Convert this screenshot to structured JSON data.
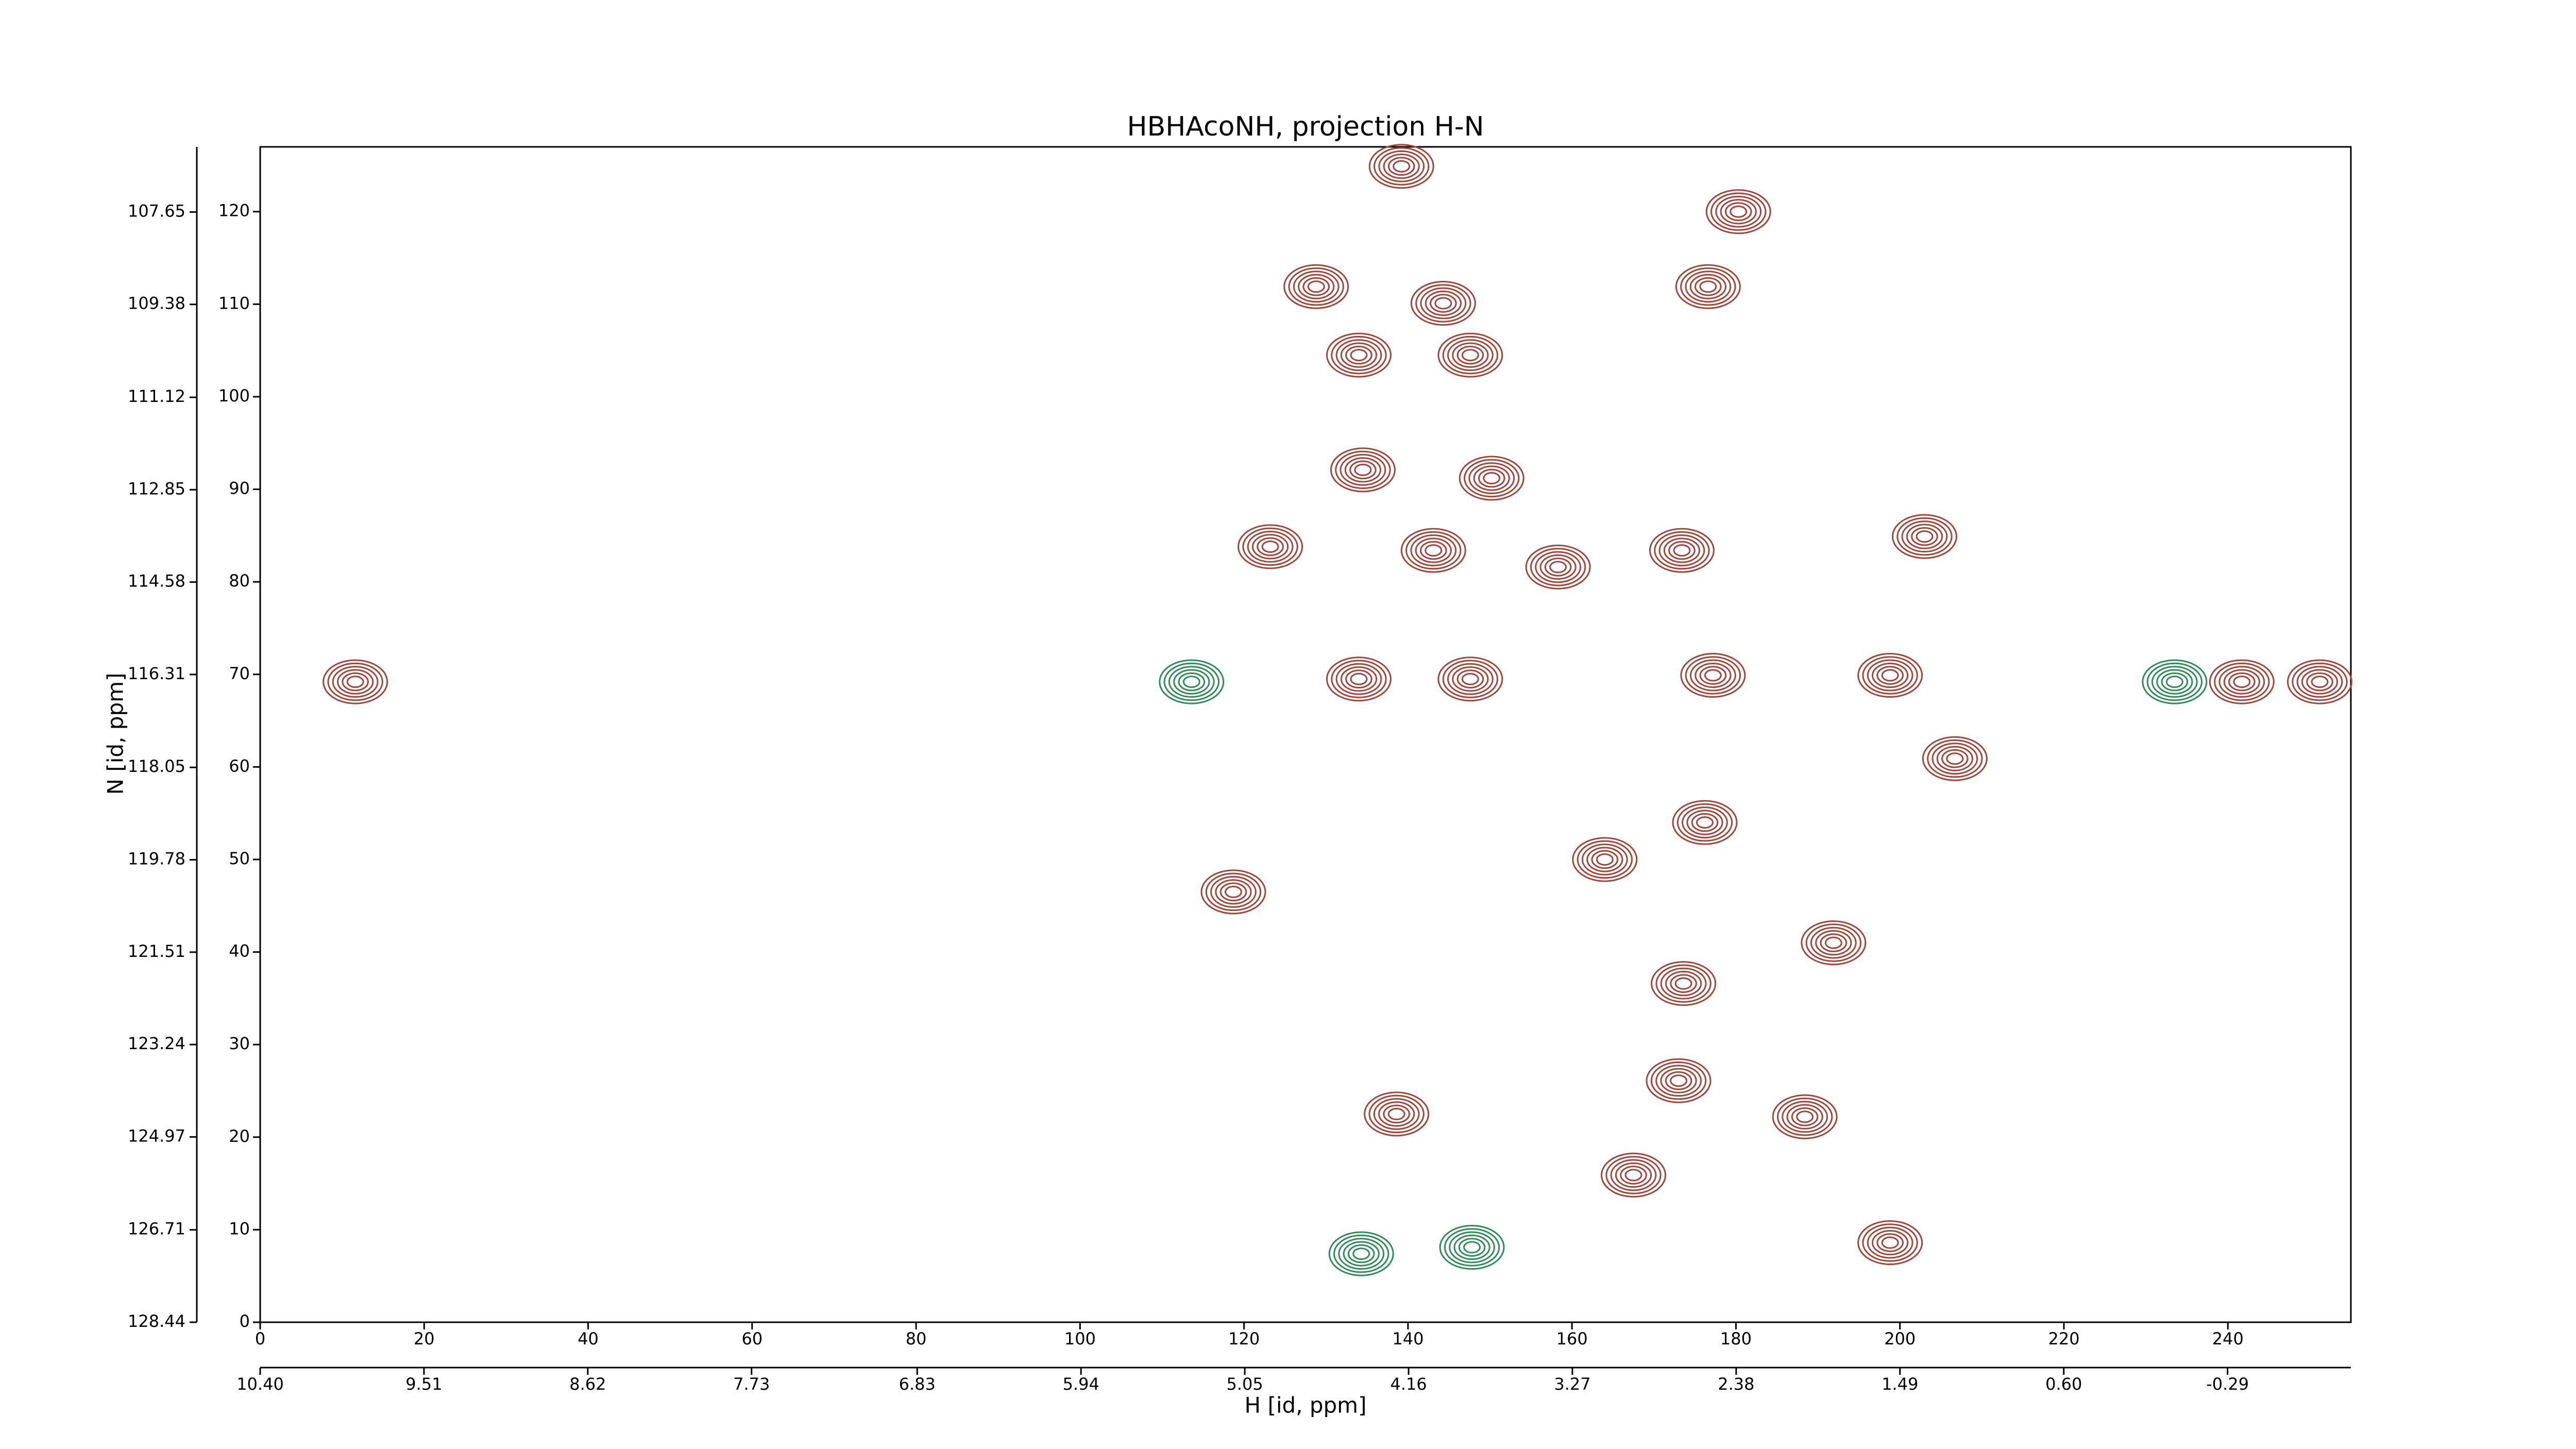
{
  "chart_data": {
    "type": "contour",
    "title": "HBHAcoNH, projection H-N",
    "xlabel": "H [id, ppm]",
    "ylabel": "N [id, ppm]",
    "xlim": [
      0,
      255
    ],
    "xticks": [
      0,
      20,
      40,
      60,
      80,
      100,
      120,
      140,
      160,
      180,
      200,
      220,
      240
    ],
    "ylim": [
      0,
      127
    ],
    "yticks": [
      0,
      10,
      20,
      30,
      40,
      50,
      60,
      70,
      80,
      90,
      100,
      110,
      120
    ],
    "x2lim": [
      10.4,
      -0.96
    ],
    "x2ticks": [
      {
        "value": 10.4,
        "label": "10.40"
      },
      {
        "value": 9.51,
        "label": "9.51"
      },
      {
        "value": 8.62,
        "label": "8.62"
      },
      {
        "value": 7.73,
        "label": "7.73"
      },
      {
        "value": 6.83,
        "label": "6.83"
      },
      {
        "value": 5.94,
        "label": "5.94"
      },
      {
        "value": 5.05,
        "label": "5.05"
      },
      {
        "value": 4.16,
        "label": "4.16"
      },
      {
        "value": 3.27,
        "label": "3.27"
      },
      {
        "value": 2.38,
        "label": "2.38"
      },
      {
        "value": 1.49,
        "label": "1.49"
      },
      {
        "value": 0.6,
        "label": "0.60"
      },
      {
        "value": -0.29,
        "label": "-0.29"
      }
    ],
    "y2lim": [
      128.44,
      106.43
    ],
    "y2ticks": [
      {
        "value": 128.44,
        "label": "128.44"
      },
      {
        "value": 126.71,
        "label": "126.71"
      },
      {
        "value": 124.97,
        "label": "124.97"
      },
      {
        "value": 123.24,
        "label": "123.24"
      },
      {
        "value": 121.51,
        "label": "121.51"
      },
      {
        "value": 119.78,
        "label": "119.78"
      },
      {
        "value": 118.05,
        "label": "118.05"
      },
      {
        "value": 116.31,
        "label": "116.31"
      },
      {
        "value": 114.58,
        "label": "114.58"
      },
      {
        "value": 112.85,
        "label": "112.85"
      },
      {
        "value": 111.12,
        "label": "111.12"
      },
      {
        "value": 109.38,
        "label": "109.38"
      },
      {
        "value": 107.65,
        "label": "107.65"
      }
    ],
    "series": [
      {
        "color": "#a0453a",
        "x": [
          134,
          147.6,
          134,
          147.6,
          138.6,
          173.6,
          176.2,
          188.4,
          203,
          173.4,
          176.6,
          198.8,
          206.7,
          191.9,
          118.7,
          123.2,
          128.8,
          144.3,
          150.2,
          134.5,
          139.2,
          180.3,
          198.8,
          11.6,
          251.2,
          241.7,
          158.3,
          143.1,
          167.5,
          173,
          177.2,
          164
        ],
        "values": [
          69.5,
          69.5,
          104.5,
          104.5,
          22.5,
          36.6,
          54,
          22.2,
          84.9,
          83.4,
          111.9,
          69.9,
          60.9,
          41,
          46.5,
          83.8,
          111.9,
          110.1,
          91.2,
          92.1,
          124.9,
          120,
          8.6,
          69.2,
          69.2,
          69.2,
          81.6,
          83.4,
          15.9,
          26.1,
          69.9,
          50
        ]
      },
      {
        "color": "#2e8b57",
        "x": [
          134.3,
          147.8,
          233.5,
          113.6
        ],
        "values": [
          7.4,
          8.1,
          69.2,
          69.2
        ]
      }
    ]
  }
}
